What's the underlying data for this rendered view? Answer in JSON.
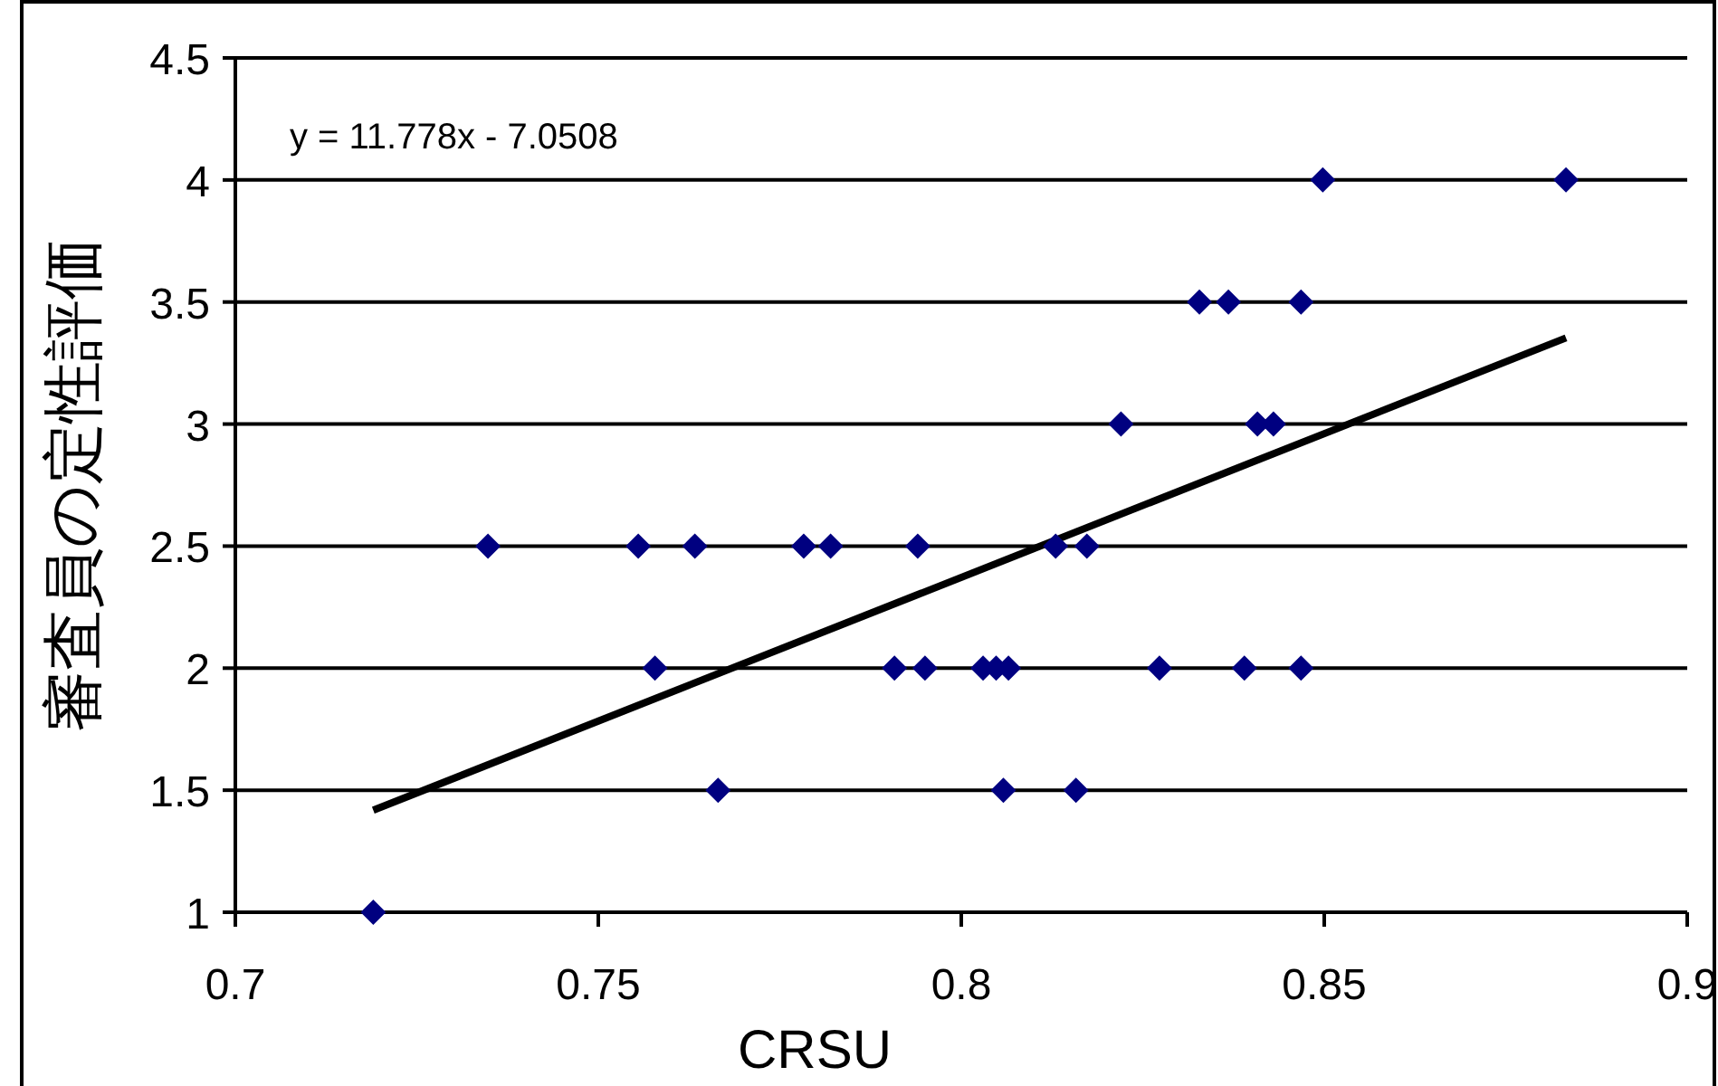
{
  "chart_data": {
    "type": "scatter",
    "xlabel": "CRSU",
    "ylabel": "審査員の定性評価",
    "annotations": [
      "y = 11.778x - 7.0508"
    ],
    "xlim": [
      0.7,
      0.9
    ],
    "ylim": [
      1,
      4.5
    ],
    "xticks": [
      0.7,
      0.75,
      0.8,
      0.85,
      0.9
    ],
    "yticks": [
      1,
      1.5,
      2,
      2.5,
      3,
      3.5,
      4,
      4.5
    ],
    "grid": "y",
    "series": [
      {
        "type": "scatter",
        "color": "#000080",
        "marker": "diamond",
        "x": [
          0.719,
          0.7665,
          0.8058,
          0.8158,
          0.7578,
          0.7908,
          0.795,
          0.803,
          0.8048,
          0.8065,
          0.8273,
          0.839,
          0.8468,
          0.7348,
          0.7555,
          0.7633,
          0.7783,
          0.782,
          0.794,
          0.813,
          0.8173,
          0.822,
          0.8408,
          0.843,
          0.8328,
          0.8368,
          0.8468,
          0.8498,
          0.8833
        ],
        "values": [
          1,
          1.5,
          1.5,
          1.5,
          2,
          2,
          2,
          2,
          2,
          2,
          2,
          2,
          2,
          2.5,
          2.5,
          2.5,
          2.5,
          2.5,
          2.5,
          2.5,
          2.5,
          3,
          3,
          3,
          3.5,
          3.5,
          3.5,
          4,
          4
        ]
      },
      {
        "type": "line",
        "color": "#000000",
        "marker": "none",
        "line_style": "solid",
        "x": [
          0.719,
          0.8833
        ],
        "values": [
          1.418,
          3.353
        ]
      }
    ]
  }
}
